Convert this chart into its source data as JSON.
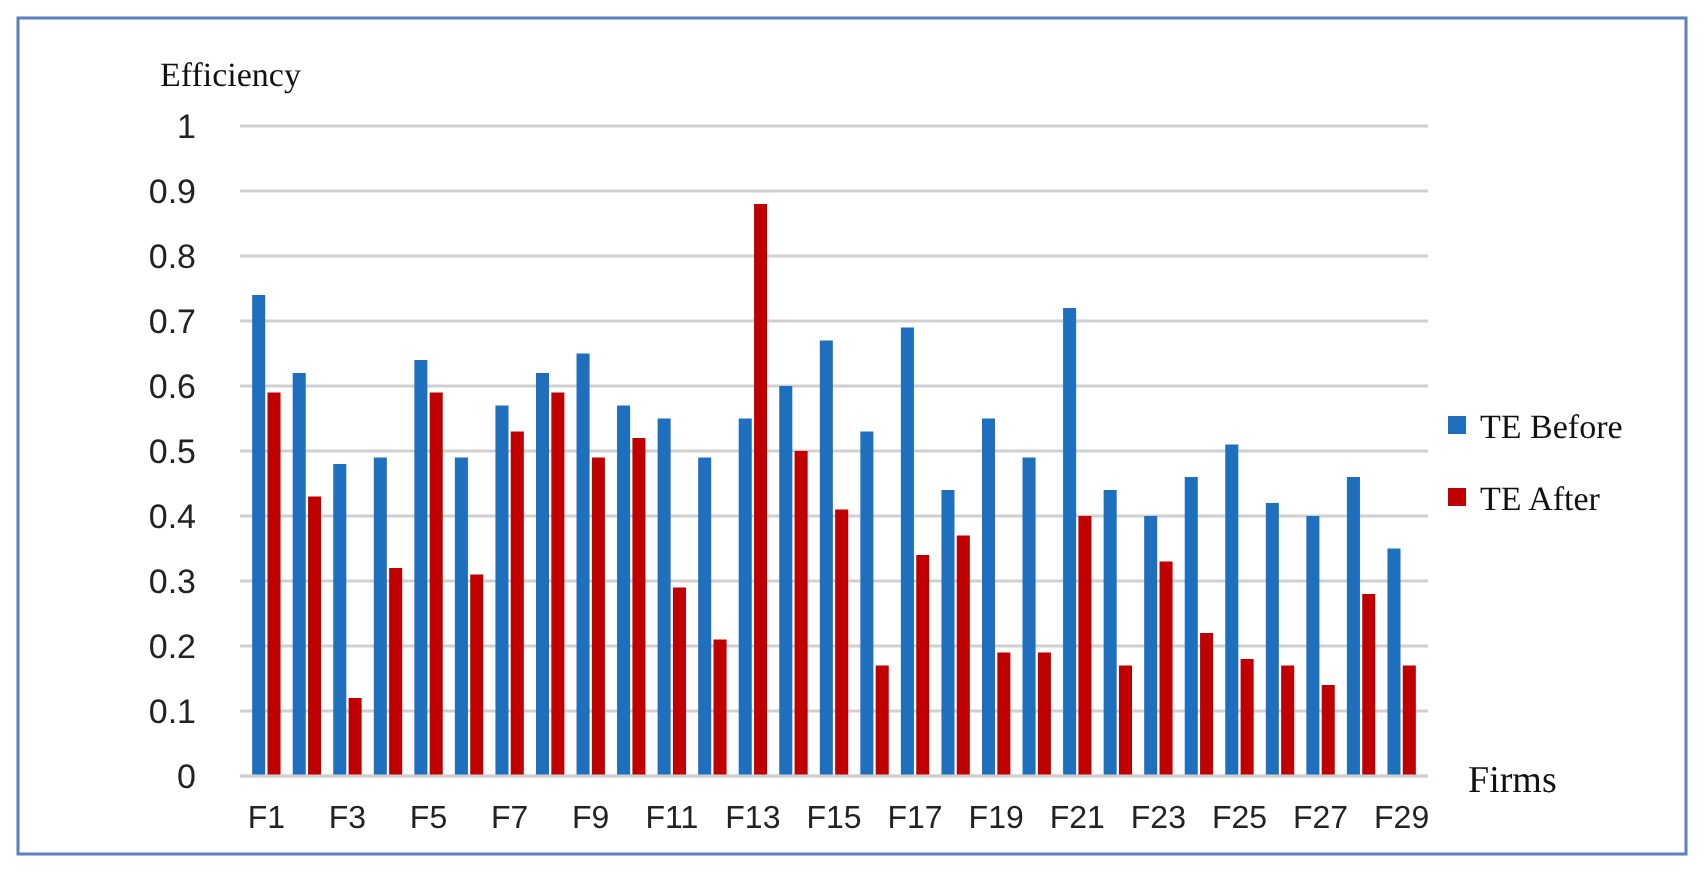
{
  "chart_data": {
    "type": "bar",
    "ylabel": "Efficiency",
    "xlabel": "Firms",
    "categories": [
      "F1",
      null,
      "F3",
      null,
      "F5",
      null,
      "F7",
      null,
      "F9",
      null,
      "F11",
      null,
      "F13",
      null,
      "F15",
      null,
      "F17",
      null,
      "F19",
      null,
      "F21",
      null,
      "F23",
      null,
      "F25",
      null,
      "F27",
      null,
      "F29"
    ],
    "series": [
      {
        "name": "TE Before",
        "color": "#1f6fbf",
        "values": [
          0.74,
          0.62,
          0.48,
          0.49,
          0.64,
          0.49,
          0.57,
          0.62,
          0.65,
          0.57,
          0.55,
          0.49,
          0.55,
          0.6,
          0.67,
          0.53,
          0.69,
          0.44,
          0.55,
          0.49,
          0.72,
          0.44,
          0.4,
          0.46,
          0.51,
          0.42,
          0.4,
          0.46,
          0.35
        ]
      },
      {
        "name": "TE After",
        "color": "#c00000",
        "values": [
          0.59,
          0.43,
          0.12,
          0.32,
          0.59,
          0.31,
          0.53,
          0.59,
          0.49,
          0.52,
          0.29,
          0.21,
          0.88,
          0.5,
          0.41,
          0.17,
          0.34,
          0.37,
          0.19,
          0.19,
          0.4,
          0.17,
          0.33,
          0.22,
          0.18,
          0.17,
          0.14,
          0.28,
          0.17
        ]
      }
    ],
    "ylim": [
      0,
      1
    ],
    "yticks": [
      0,
      0.1,
      0.2,
      0.3,
      0.4,
      0.5,
      0.6,
      0.7,
      0.8,
      0.9,
      1
    ],
    "grid": "y",
    "legend": "right"
  }
}
